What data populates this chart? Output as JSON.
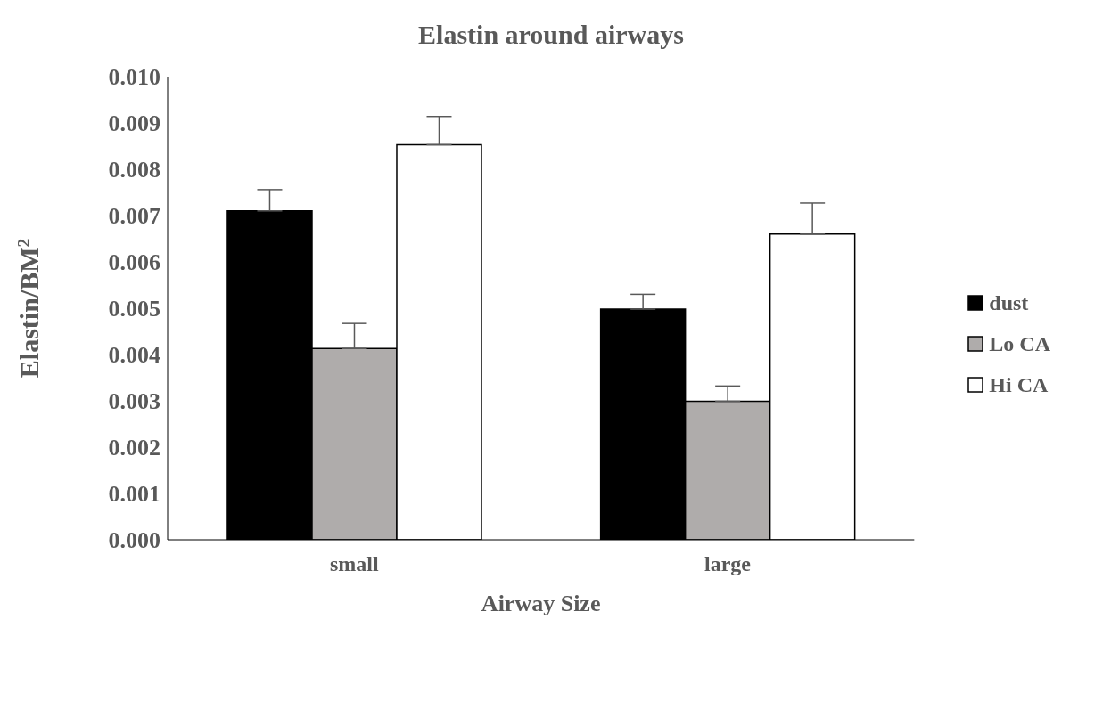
{
  "chart_data": {
    "type": "bar",
    "title": "Elastin around airways",
    "xlabel": "Airway Size",
    "ylabel": "Elastin/BM$^{2}$",
    "categories": [
      "small",
      "large"
    ],
    "series": [
      {
        "name": "dust",
        "color": "#000000",
        "values": [
          0.0071,
          0.00498
        ],
        "errors": [
          [
            0.0071,
            0.00756
          ],
          [
            0.00498,
            0.0053
          ]
        ]
      },
      {
        "name": "Lo CA",
        "color": "#afacab",
        "values": [
          0.00413,
          0.00299
        ],
        "errors": [
          [
            0.00413,
            0.00467
          ],
          [
            0.00299,
            0.00332
          ]
        ]
      },
      {
        "name": "Hi CA",
        "color": "#ffffff",
        "values": [
          0.00853,
          0.0066
        ],
        "errors": [
          [
            0.00853,
            0.00914
          ],
          [
            0.0066,
            0.00727
          ]
        ]
      }
    ],
    "ylim": [
      0,
      0.01
    ],
    "yticks": [
      {
        "value": 0,
        "label": "0.000"
      },
      {
        "value": 0.001,
        "label": "0.001"
      },
      {
        "value": 0.002,
        "label": "0.002"
      },
      {
        "value": 0.003,
        "label": "0.003"
      },
      {
        "value": 0.004,
        "label": "0.004"
      },
      {
        "value": 0.005,
        "label": "0.005"
      },
      {
        "value": 0.006,
        "label": "0.006"
      },
      {
        "value": 0.007,
        "label": "0.007"
      },
      {
        "value": 0.008,
        "label": "0.008"
      },
      {
        "value": 0.009,
        "label": "0.009"
      },
      {
        "value": 0.01,
        "label": "0.010"
      }
    ],
    "grid": false,
    "legend": "right"
  }
}
